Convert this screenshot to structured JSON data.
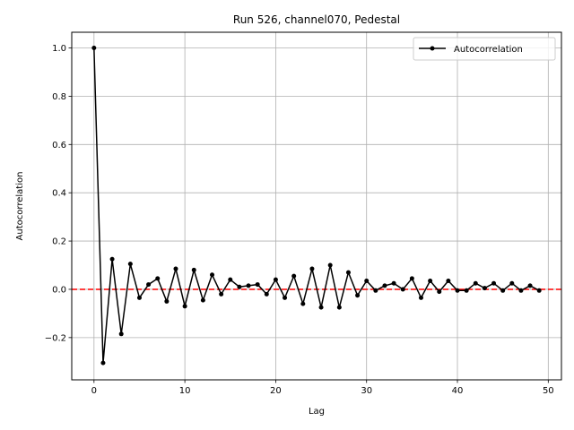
{
  "chart_data": {
    "type": "line",
    "title": "Run 526, channel070, Pedestal",
    "xlabel": "Lag",
    "ylabel": "Autocorrelation",
    "xlim": [
      -2.45,
      51.45
    ],
    "ylim": [
      -0.375,
      1.065
    ],
    "xticks": [
      0,
      10,
      20,
      30,
      40,
      50
    ],
    "yticks": [
      -0.2,
      0.0,
      0.2,
      0.4,
      0.6,
      0.8,
      1.0
    ],
    "xtick_labels": [
      "0",
      "10",
      "20",
      "30",
      "40",
      "50"
    ],
    "ytick_labels": [
      "−0.2",
      "0.0",
      "0.2",
      "0.4",
      "0.6",
      "0.8",
      "1.0"
    ],
    "grid": true,
    "legend_position": "top-right",
    "series": [
      {
        "name": "Autocorrelation",
        "color": "#000000",
        "marker": "circle",
        "x": [
          0,
          1,
          2,
          3,
          4,
          5,
          6,
          7,
          8,
          9,
          10,
          11,
          12,
          13,
          14,
          15,
          16,
          17,
          18,
          19,
          20,
          21,
          22,
          23,
          24,
          25,
          26,
          27,
          28,
          29,
          30,
          31,
          32,
          33,
          34,
          35,
          36,
          37,
          38,
          39,
          40,
          41,
          42,
          43,
          44,
          45,
          46,
          47,
          48,
          49
        ],
        "y": [
          1.0,
          -0.305,
          0.125,
          -0.185,
          0.105,
          -0.035,
          0.02,
          0.045,
          -0.05,
          0.085,
          -0.07,
          0.08,
          -0.045,
          0.06,
          -0.02,
          0.04,
          0.01,
          0.015,
          0.02,
          -0.02,
          0.04,
          -0.035,
          0.055,
          -0.06,
          0.085,
          -0.075,
          0.1,
          -0.075,
          0.07,
          -0.025,
          0.035,
          -0.005,
          0.015,
          0.025,
          0.0,
          0.045,
          -0.035,
          0.035,
          -0.01,
          0.035,
          -0.005,
          -0.005,
          0.025,
          0.005,
          0.025,
          -0.005,
          0.025,
          -0.005,
          0.015,
          -0.005
        ]
      }
    ],
    "reference_line": {
      "y": 0.0,
      "color": "#ff0000",
      "style": "dashed"
    }
  }
}
